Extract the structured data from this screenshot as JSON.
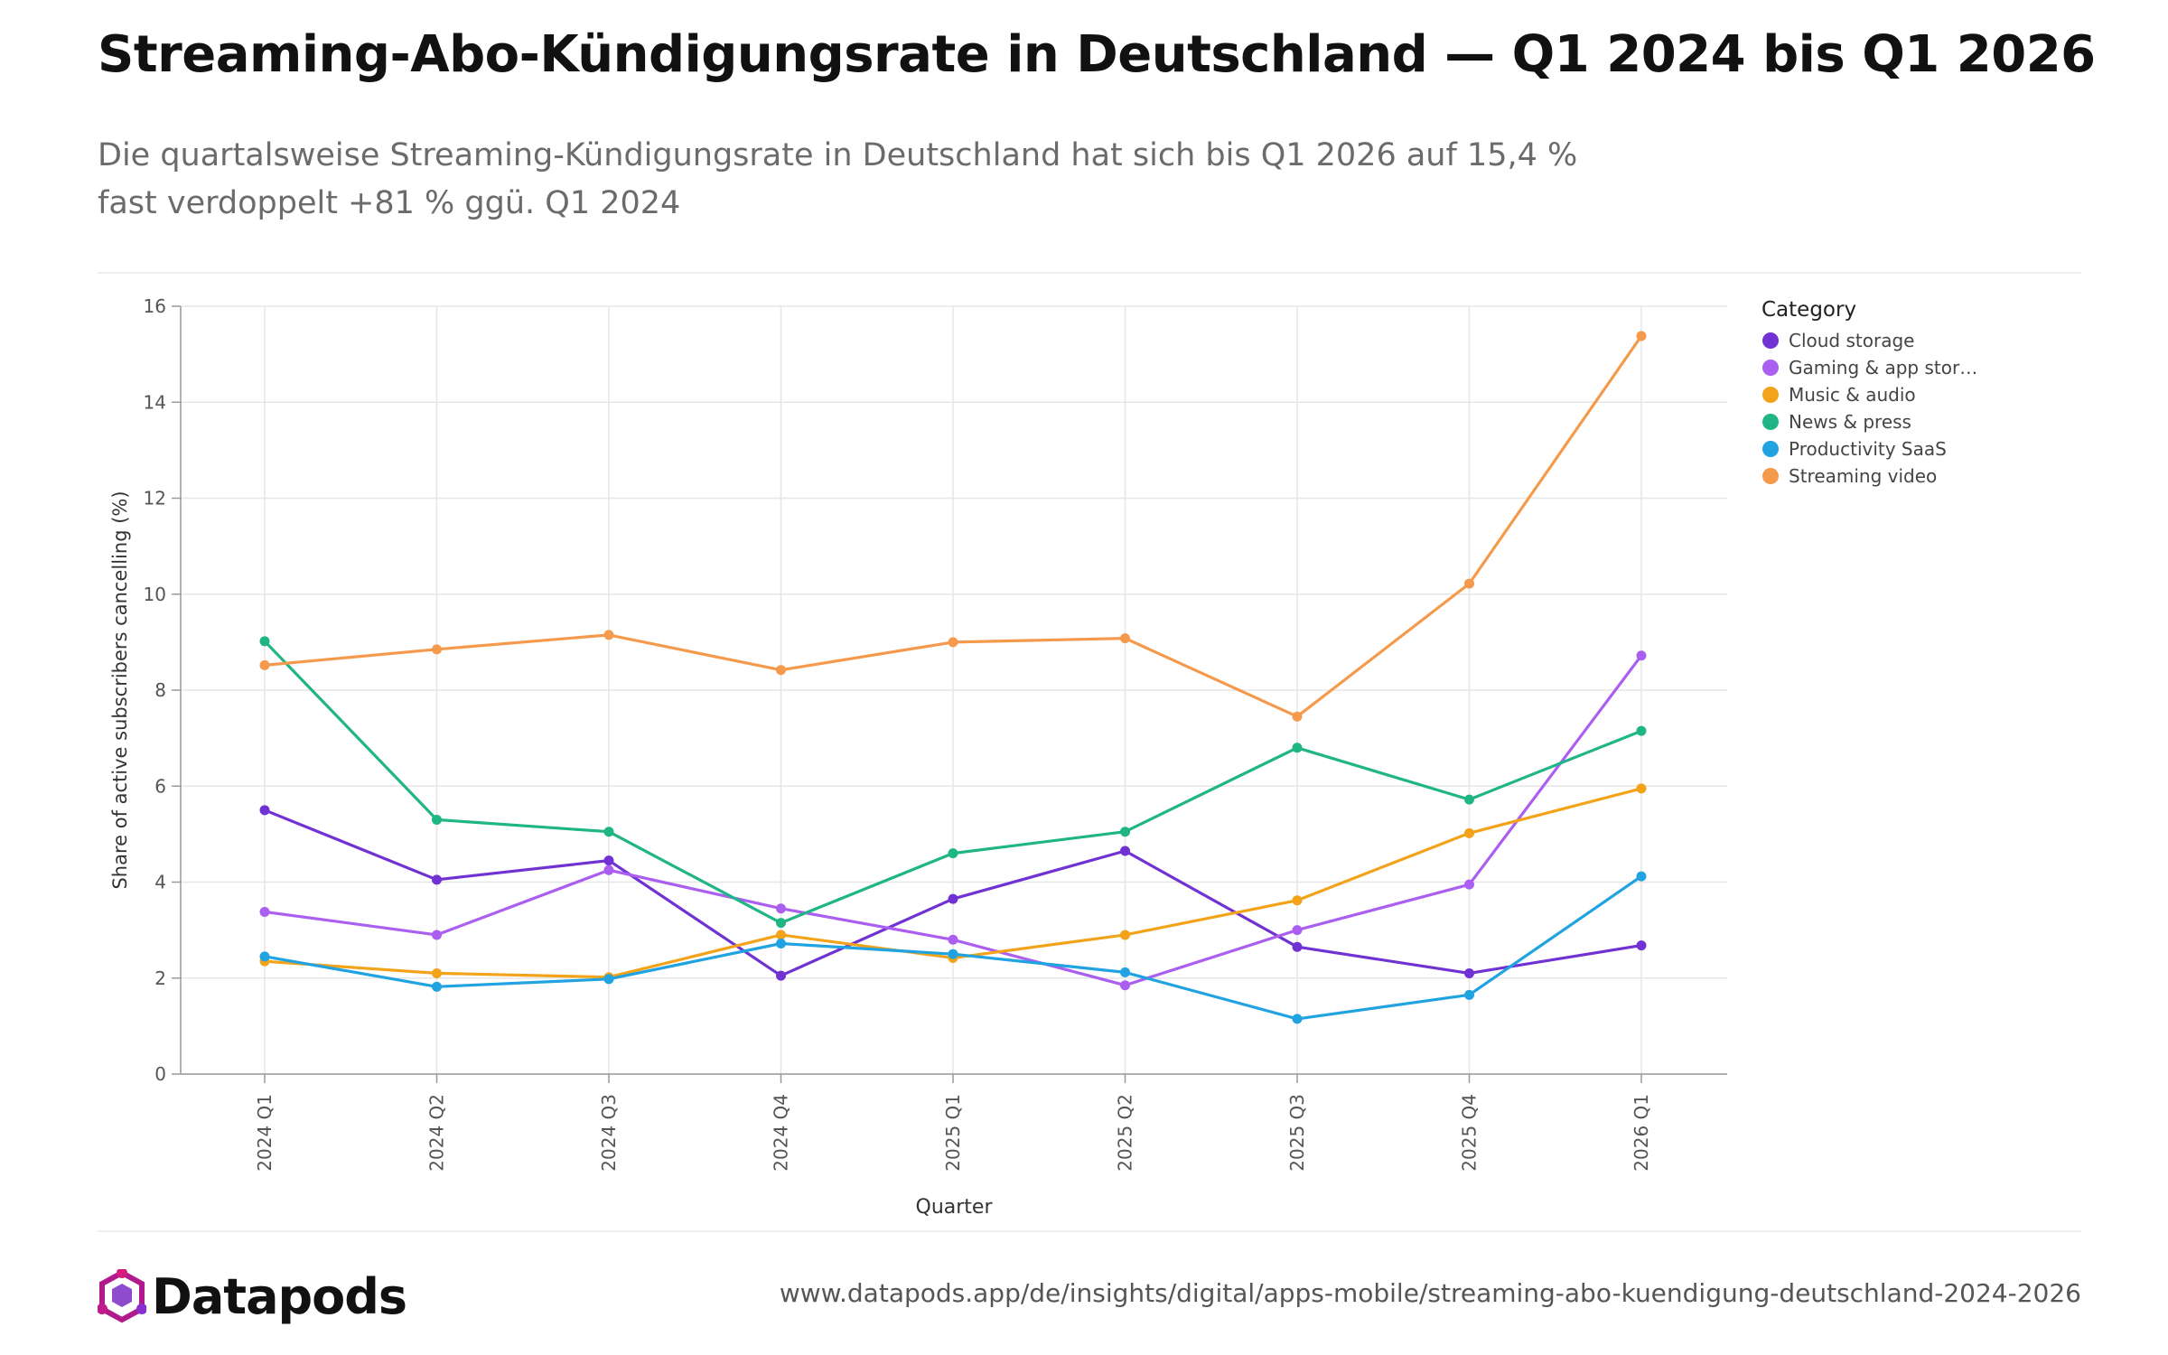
{
  "header": {
    "title": "Streaming-Abo-Kündigungsrate in Deutschland — Q1 2024 bis Q1 2026",
    "subtitle_line1": "Die quartalsweise Streaming-Kündigungsrate in Deutschland hat sich bis Q1 2026 auf 15,4 %",
    "subtitle_line2": "fast verdoppelt +81 % ggü. Q1 2024"
  },
  "footer": {
    "brand": "Datapods",
    "url": "www.datapods.app/de/insights/digital/apps-mobile/streaming-abo-kuendigung-deutschland-2024-2026"
  },
  "chart_data": {
    "type": "line",
    "xlabel": "Quarter",
    "ylabel": "Share of active subscribers cancelling (%)",
    "ylim": [
      0,
      16
    ],
    "yticks": [
      0,
      2,
      4,
      6,
      8,
      10,
      12,
      14,
      16
    ],
    "grid": true,
    "legend_title": "Category",
    "legend_position": "right",
    "x": [
      "2024 Q1",
      "2024 Q2",
      "2024 Q3",
      "2024 Q4",
      "2025 Q1",
      "2025 Q2",
      "2025 Q3",
      "2025 Q4",
      "2026 Q1"
    ],
    "series": [
      {
        "name": "Cloud storage",
        "legend_label": "Cloud storage",
        "color": "#7032d3",
        "values": [
          5.5,
          4.05,
          4.45,
          2.05,
          3.65,
          4.65,
          2.65,
          2.1,
          2.68
        ]
      },
      {
        "name": "Gaming & app stores",
        "legend_label": "Gaming & app stor…",
        "color": "#ab5ff0",
        "values": [
          3.38,
          2.9,
          4.25,
          3.45,
          2.8,
          1.85,
          3.0,
          3.95,
          8.72
        ]
      },
      {
        "name": "Music & audio",
        "legend_label": "Music & audio",
        "color": "#f2a319",
        "values": [
          2.35,
          2.1,
          2.02,
          2.9,
          2.42,
          2.9,
          3.62,
          5.02,
          5.95
        ]
      },
      {
        "name": "News & press",
        "legend_label": "News & press",
        "color": "#1fb585",
        "values": [
          9.02,
          5.3,
          5.05,
          3.15,
          4.6,
          5.05,
          6.8,
          5.72,
          7.15
        ]
      },
      {
        "name": "Productivity SaaS",
        "legend_label": "Productivity SaaS",
        "color": "#20a3e0",
        "values": [
          2.45,
          1.82,
          1.98,
          2.72,
          2.5,
          2.12,
          1.15,
          1.65,
          4.12
        ]
      },
      {
        "name": "Streaming video",
        "legend_label": "Streaming video",
        "color": "#f59a4c",
        "values": [
          8.52,
          8.85,
          9.15,
          8.42,
          9.0,
          9.08,
          7.45,
          10.22,
          15.38
        ]
      }
    ]
  }
}
